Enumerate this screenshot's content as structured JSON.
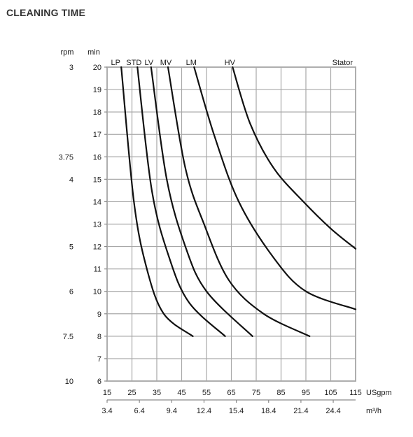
{
  "title": "CLEANING TIME",
  "chart_data": {
    "type": "line",
    "title": "CLEANING TIME",
    "grid": true,
    "y_label_rpm": "rpm",
    "y_label_min": "min",
    "y_range": [
      6,
      20
    ],
    "x_range": [
      15,
      115
    ],
    "y_ticks": [
      6,
      7,
      8,
      9,
      10,
      11,
      12,
      13,
      14,
      15,
      16,
      17,
      18,
      19,
      20
    ],
    "rpm_ticks": [
      {
        "label": "3",
        "at": 20
      },
      {
        "label": "3.75",
        "at": 16
      },
      {
        "label": "4",
        "at": 15
      },
      {
        "label": "5",
        "at": 12
      },
      {
        "label": "6",
        "at": 10
      },
      {
        "label": "7.5",
        "at": 8
      },
      {
        "label": "10",
        "at": 6
      }
    ],
    "x_ticks_usgpm": [
      "15",
      "25",
      "35",
      "45",
      "55",
      "65",
      "75",
      "85",
      "95",
      "105",
      "115"
    ],
    "x_label_usgpm": "USgpm",
    "x_ticks_m3h": [
      {
        "label": "3.4",
        "at": 15
      },
      {
        "label": "6.4",
        "at": 28
      },
      {
        "label": "9.4",
        "at": 41
      },
      {
        "label": "12.4",
        "at": 54
      },
      {
        "label": "15.4",
        "at": 67
      },
      {
        "label": "18.4",
        "at": 80
      },
      {
        "label": "21.4",
        "at": 93
      },
      {
        "label": "24.4",
        "at": 106
      }
    ],
    "x_label_m3h": "m³/h",
    "series": [
      {
        "name": "LP",
        "points": [
          [
            20.7,
            20
          ],
          [
            25.8,
            14
          ],
          [
            31,
            11
          ],
          [
            37.8,
            9
          ],
          [
            49.5,
            8
          ]
        ]
      },
      {
        "name": "STD",
        "points": [
          [
            27.2,
            20
          ],
          [
            33,
            14.5
          ],
          [
            40,
            11.5
          ],
          [
            48,
            9.5
          ],
          [
            62.5,
            8
          ]
        ]
      },
      {
        "name": "LV",
        "points": [
          [
            32.7,
            20
          ],
          [
            39,
            15
          ],
          [
            46.5,
            12
          ],
          [
            55,
            10
          ],
          [
            73.5,
            8
          ]
        ]
      },
      {
        "name": "MV",
        "points": [
          [
            39.5,
            20
          ],
          [
            46.5,
            15.5
          ],
          [
            54,
            13
          ],
          [
            64,
            10.5
          ],
          [
            78,
            9
          ],
          [
            96.5,
            8
          ]
        ]
      },
      {
        "name": "LM",
        "points": [
          [
            50,
            20
          ],
          [
            58,
            17
          ],
          [
            68,
            14
          ],
          [
            82,
            11.5
          ],
          [
            95,
            10
          ],
          [
            115,
            9.2
          ]
        ]
      },
      {
        "name": "HV",
        "points": [
          [
            65.5,
            20
          ],
          [
            72.5,
            17.5
          ],
          [
            82,
            15.5
          ],
          [
            94,
            14
          ],
          [
            105,
            12.8
          ],
          [
            115,
            11.9
          ]
        ]
      }
    ],
    "annotations": [
      {
        "text": "Stator",
        "position": "top-right"
      }
    ]
  }
}
